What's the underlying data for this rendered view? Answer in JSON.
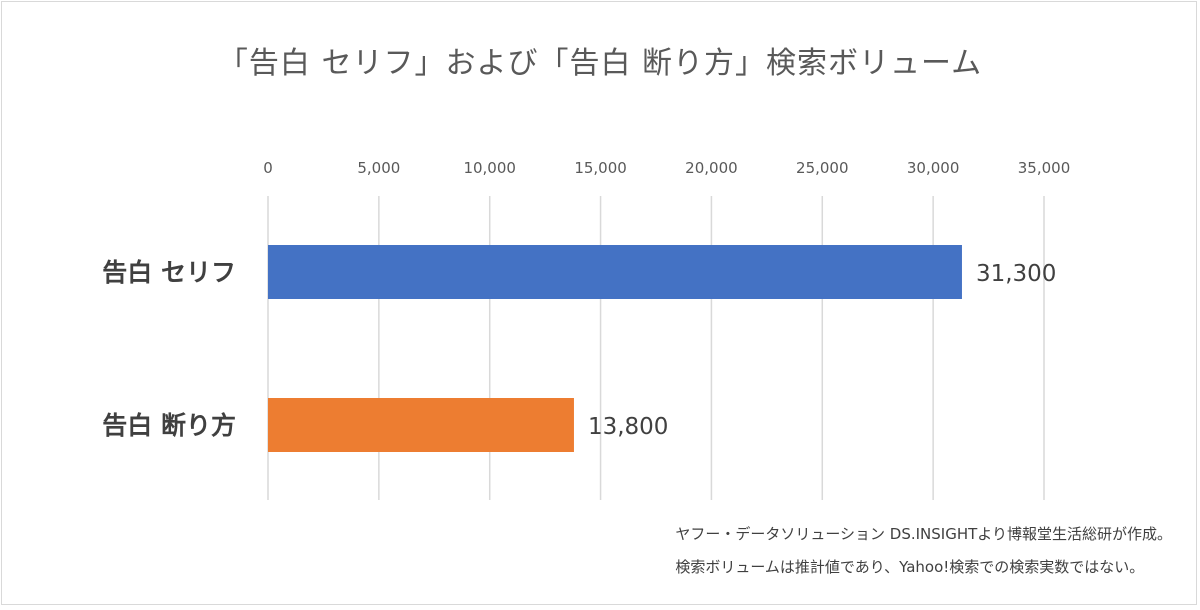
{
  "chart_data": {
    "type": "bar",
    "orientation": "horizontal",
    "title": "「告白 セリフ」および「告白 断り方」検索ボリューム",
    "categories": [
      "告白 セリフ",
      "告白 断り方"
    ],
    "values": [
      31300,
      13800
    ],
    "value_labels": [
      "31,300",
      "13,800"
    ],
    "bar_colors": [
      "#4472C4",
      "#ED7D31"
    ],
    "xlim": [
      0,
      35000
    ],
    "x_ticks": [
      0,
      5000,
      10000,
      15000,
      20000,
      25000,
      30000,
      35000
    ],
    "x_tick_labels": [
      "0",
      "5,000",
      "10,000",
      "15,000",
      "20,000",
      "25,000",
      "30,000",
      "35,000"
    ],
    "x_axis_position": "top",
    "grid": true,
    "legend": "none"
  },
  "notes": [
    "ヤフー・データソリューション DS.INSIGHTより博報堂生活総研が作成。",
    "検索ボリュームは推計値であり、Yahoo!検索での検索実数ではない。"
  ]
}
